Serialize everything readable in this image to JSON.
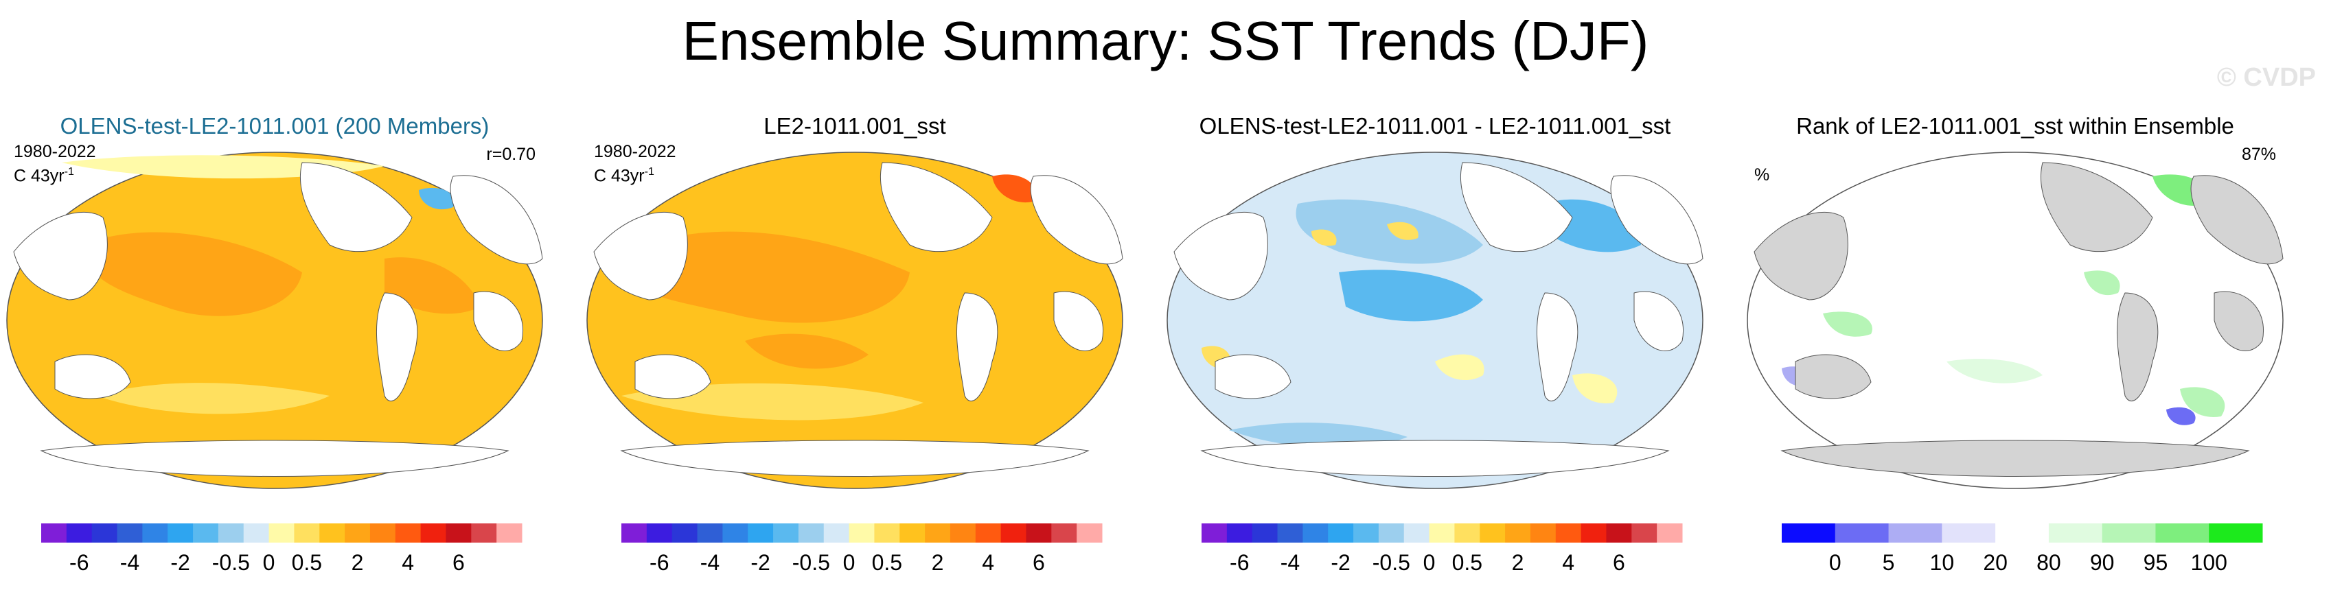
{
  "figure": {
    "title": "Ensemble Summary: SST Trends (DJF)",
    "watermark": "© CVDP"
  },
  "colors": {
    "trend_scale": [
      "#7f1ed8",
      "#3c1ce0",
      "#2b36d8",
      "#2f5fd6",
      "#2f84e6",
      "#2ea5f0",
      "#5ab9ef",
      "#9ccfee",
      "#d6e9f7",
      "#fffaa8",
      "#ffe05f",
      "#ffc21e",
      "#ffa516",
      "#ff8512",
      "#ff5a10",
      "#f0210e",
      "#c8121a",
      "#d9454b",
      "#ffaaa8"
    ],
    "rank_scale": [
      "#0c0cff",
      "#6c6cf4",
      "#adadf4",
      "#e2e2fb",
      "#ffffff",
      "#e0fbe0",
      "#b6f5b6",
      "#7eee7e",
      "#1cea1c"
    ],
    "land_gray": "#d4d4d4",
    "title_blue": "#1c6e93"
  },
  "chart_data": [
    {
      "type": "heatmap",
      "title": "OLENS-test-LE2-1011.001 (200 Members)",
      "period": "1980-2022",
      "units": "C 43yr",
      "units_exp": "-1",
      "stat_right": "r=0.70",
      "colorbar": {
        "tick_labels": [
          "-6",
          "-4",
          "-2",
          "-0.5",
          "0",
          "0.5",
          "2",
          "4",
          "6"
        ],
        "levels": [
          -7,
          -6,
          -5,
          -4,
          -3,
          -2,
          -1,
          -0.5,
          -0.25,
          0,
          0.25,
          0.5,
          1,
          2,
          3,
          4,
          5,
          6,
          7
        ]
      },
      "summary": "ensemble mean warming, mostly 0.5 to 2 C 43yr-1, cooling spot near Labrador Sea"
    },
    {
      "type": "heatmap",
      "title": "LE2-1011.001_sst",
      "period": "1980-2022",
      "units": "C 43yr",
      "units_exp": "-1",
      "colorbar": {
        "tick_labels": [
          "-6",
          "-4",
          "-2",
          "-0.5",
          "0",
          "0.5",
          "2",
          "4",
          "6"
        ],
        "levels": [
          -7,
          -6,
          -5,
          -4,
          -3,
          -2,
          -1,
          -0.5,
          -0.25,
          0,
          0.25,
          0.5,
          1,
          2,
          3,
          4,
          5,
          6,
          7
        ]
      },
      "summary": "single member warming, mostly 0.5 to 2 C 43yr-1"
    },
    {
      "type": "heatmap",
      "title": "OLENS-test-LE2-1011.001 - LE2-1011.001_sst",
      "colorbar": {
        "tick_labels": [
          "-6",
          "-4",
          "-2",
          "-0.5",
          "0",
          "0.5",
          "2",
          "4",
          "6"
        ],
        "levels": [
          -7,
          -6,
          -5,
          -4,
          -3,
          -2,
          -1,
          -0.5,
          -0.25,
          0,
          0.25,
          0.5,
          1,
          2,
          3,
          4,
          5,
          6,
          7
        ]
      },
      "summary": "difference mostly -0.5 to 0 with positive patches"
    },
    {
      "type": "heatmap",
      "title": "Rank of LE2-1011.001_sst within Ensemble",
      "units": "%",
      "stat_right": "87%",
      "colorbar": {
        "tick_labels": [
          "0",
          "5",
          "10",
          "20",
          "80",
          "90",
          "95",
          "100"
        ],
        "levels": [
          0,
          2.5,
          5,
          10,
          20,
          80,
          90,
          95,
          97.5,
          100
        ]
      },
      "summary": "rank mostly 20-80%, land masked gray"
    }
  ]
}
